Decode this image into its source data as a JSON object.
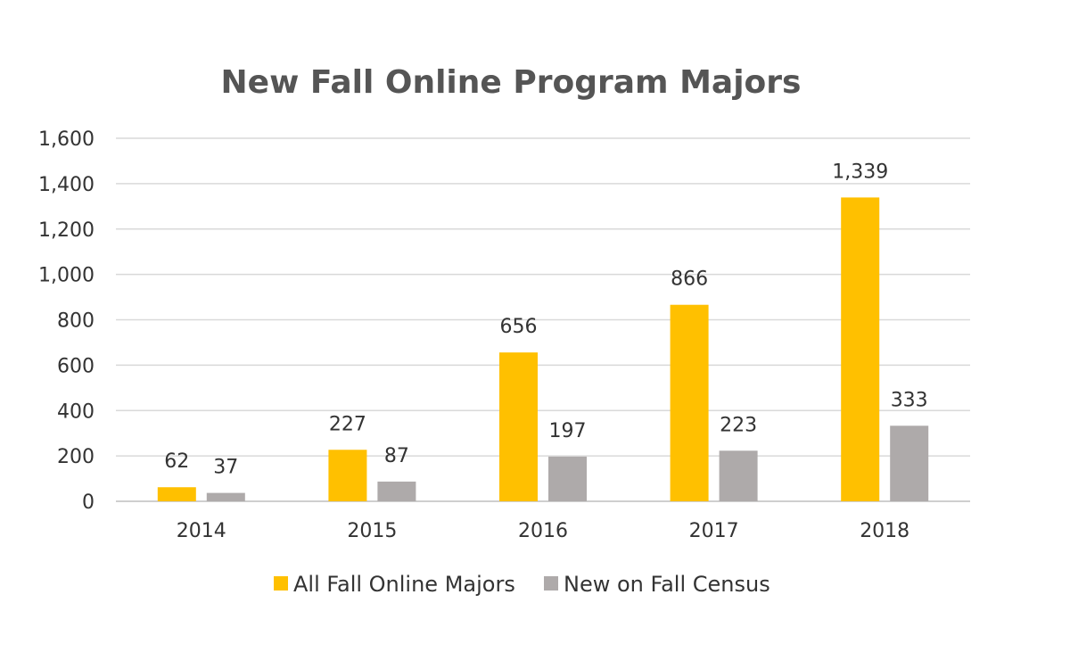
{
  "chart_data": {
    "type": "bar",
    "title": "New Fall Online Program Majors",
    "categories": [
      "2014",
      "2015",
      "2016",
      "2017",
      "2018"
    ],
    "series": [
      {
        "name": "All Fall Online Majors",
        "values": [
          62,
          227,
          656,
          866,
          1339
        ],
        "labels": [
          "62",
          "227",
          "656",
          "866",
          "1,339"
        ],
        "color": "#FFC000"
      },
      {
        "name": "New on Fall Census",
        "values": [
          37,
          87,
          197,
          223,
          333
        ],
        "labels": [
          "37",
          "87",
          "197",
          "223",
          "333"
        ],
        "color": "#AEAAAA"
      }
    ],
    "ylim": [
      0,
      1600
    ],
    "yticks": [
      0,
      200,
      400,
      600,
      800,
      1000,
      1200,
      1400,
      1600
    ],
    "ytick_labels": [
      "0",
      "200",
      "400",
      "600",
      "800",
      "1,000",
      "1,200",
      "1,400",
      "1,600"
    ],
    "grid": true,
    "legend_position": "bottom"
  }
}
